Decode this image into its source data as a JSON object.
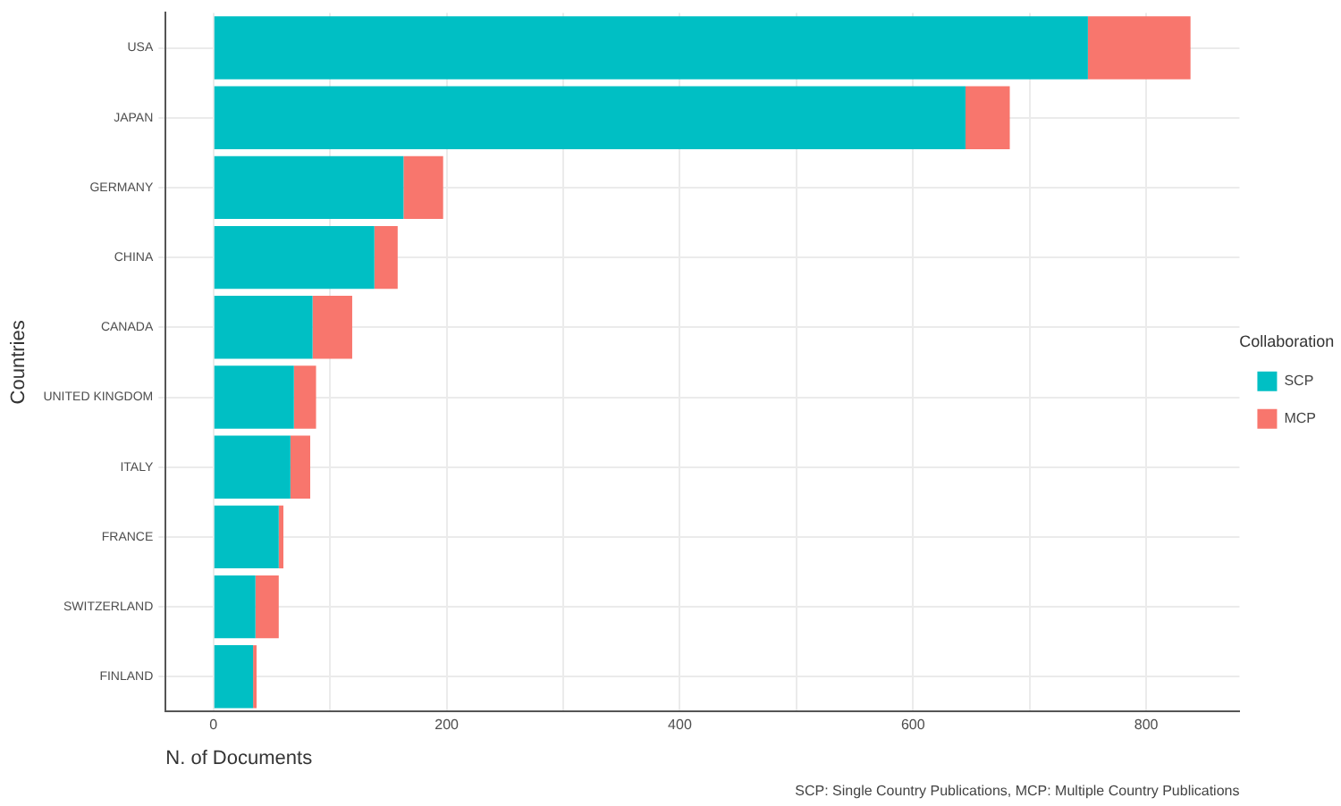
{
  "chart_data": {
    "type": "bar",
    "orientation": "horizontal",
    "stacked": true,
    "categories": [
      "USA",
      "JAPAN",
      "GERMANY",
      "CHINA",
      "CANADA",
      "UNITED KINGDOM",
      "ITALY",
      "FRANCE",
      "SWITZERLAND",
      "FINLAND"
    ],
    "series": [
      {
        "name": "SCP",
        "color": "#00bfc4",
        "values": [
          750,
          645,
          163,
          138,
          85,
          69,
          66,
          56,
          36,
          34
        ]
      },
      {
        "name": "MCP",
        "color": "#f8766d",
        "values": [
          88,
          38,
          34,
          20,
          34,
          19,
          17,
          4,
          20,
          3
        ]
      }
    ],
    "xlim": [
      -41,
      880
    ],
    "xticks": [
      0,
      {
        "value": 100,
        "label": null
      },
      200,
      {
        "value": 300,
        "label": null
      },
      400,
      {
        "value": 500,
        "label": null
      },
      600,
      {
        "value": 700,
        "label": null
      },
      800
    ],
    "xlabel": "N. of Documents",
    "ylabel": "Countries",
    "legend_title": "Collaboration",
    "legend": "right",
    "grid": true,
    "annotations": [
      "SCP: Single Country Publications, MCP: Multiple Country Publications"
    ]
  }
}
